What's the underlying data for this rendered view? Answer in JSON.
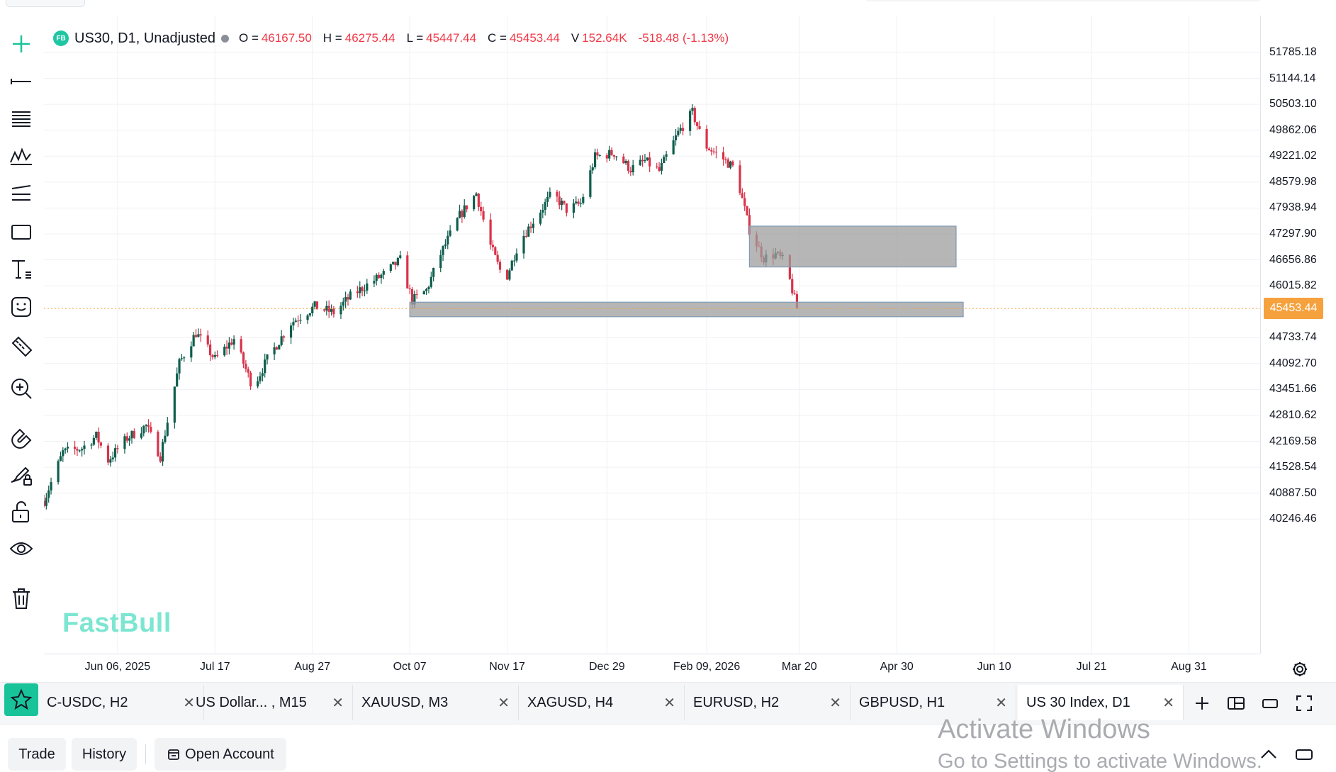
{
  "legend": {
    "logo": "FB",
    "symbol": "US30, D1, Unadjusted",
    "open_key": "O =",
    "open": "46167.50",
    "high_key": "H =",
    "high": "46275.44",
    "low_key": "L =",
    "low": "45447.44",
    "close_key": "C =",
    "close": "45453.44",
    "vol_key": "V",
    "volume": "152.64K",
    "change": "-518.48 (-1.13%)"
  },
  "watermark": "FastBull",
  "price_axis": {
    "labels": [
      "51785.18",
      "51144.14",
      "50503.10",
      "49862.06",
      "49221.02",
      "48579.98",
      "47938.94",
      "47297.90",
      "46656.86",
      "46015.82",
      "44733.74",
      "44092.70",
      "43451.66",
      "42810.62",
      "42169.58",
      "41528.54",
      "40887.50",
      "40246.46"
    ],
    "current": "45453.44"
  },
  "time_axis": {
    "labels": [
      "Jun 06, 2025",
      "Jul 17",
      "Aug 27",
      "Oct 07",
      "Nov 17",
      "Dec 29",
      "Feb 09, 2026",
      "Mar 20",
      "Apr 30",
      "Jun 10",
      "Jul 21",
      "Aug 31"
    ]
  },
  "tabs": [
    {
      "label": "C-USDC, H2",
      "close": "✕"
    },
    {
      "label": "US Dollar... , M15",
      "close": "✕"
    },
    {
      "label": "XAUUSD, M3",
      "close": "✕"
    },
    {
      "label": "XAGUSD, H4",
      "close": "✕"
    },
    {
      "label": "EURUSD, H2",
      "close": "✕"
    },
    {
      "label": "GBPUSD, H1",
      "close": "✕"
    },
    {
      "label": "US 30 Index, D1",
      "close": "✕"
    }
  ],
  "bottom": {
    "trade": "Trade",
    "history": "History",
    "open_account": "Open Account"
  },
  "activate": {
    "title": "Activate Windows",
    "subtitle": "Go to Settings to activate Windows."
  },
  "chart_data": {
    "type": "candlestick",
    "symbol": "US30",
    "timeframe": "D1",
    "ylim": [
      39900,
      52100
    ],
    "x_range": [
      "2025-05-06",
      "2026-09-30"
    ],
    "current_price": 45453.44,
    "colors": {
      "up": "#0e5e4d",
      "down": "#d8334a",
      "zone": "#9e9e9e",
      "current_line": "#f5a13d"
    },
    "zones": [
      {
        "from": "2026-02-27",
        "to": "2026-05-25",
        "top": 47490,
        "bottom": 46480
      },
      {
        "from": "2025-10-07",
        "to": "2026-05-28",
        "top": 45610,
        "bottom": 45250
      }
    ],
    "path_anchors": [
      [
        "2025-05-06",
        40700
      ],
      [
        "2025-05-14",
        41900
      ],
      [
        "2025-05-22",
        42000
      ],
      [
        "2025-05-28",
        42300
      ],
      [
        "2025-06-02",
        41700
      ],
      [
        "2025-06-10",
        42250
      ],
      [
        "2025-06-18",
        42550
      ],
      [
        "2025-06-24",
        41800
      ],
      [
        "2025-07-02",
        44100
      ],
      [
        "2025-07-09",
        44850
      ],
      [
        "2025-07-17",
        44200
      ],
      [
        "2025-07-25",
        44700
      ],
      [
        "2025-08-02",
        43500
      ],
      [
        "2025-08-08",
        44200
      ],
      [
        "2025-08-18",
        45100
      ],
      [
        "2025-08-28",
        45500
      ],
      [
        "2025-09-05",
        45350
      ],
      [
        "2025-09-12",
        45750
      ],
      [
        "2025-09-18",
        46000
      ],
      [
        "2025-09-26",
        46300
      ],
      [
        "2025-10-03",
        46650
      ],
      [
        "2025-10-08",
        45650
      ],
      [
        "2025-10-14",
        45900
      ],
      [
        "2025-10-20",
        46800
      ],
      [
        "2025-10-28",
        47750
      ],
      [
        "2025-11-04",
        48300
      ],
      [
        "2025-11-10",
        47000
      ],
      [
        "2025-11-16",
        46100
      ],
      [
        "2025-11-22",
        47100
      ],
      [
        "2025-11-29",
        47700
      ],
      [
        "2025-12-06",
        48300
      ],
      [
        "2025-12-12",
        47900
      ],
      [
        "2025-12-18",
        48050
      ],
      [
        "2025-12-24",
        49200
      ],
      [
        "2026-01-01",
        49300
      ],
      [
        "2026-01-08",
        48900
      ],
      [
        "2026-01-14",
        49100
      ],
      [
        "2026-01-20",
        48850
      ],
      [
        "2026-01-28",
        49800
      ],
      [
        "2026-02-03",
        50300
      ],
      [
        "2026-02-08",
        49500
      ],
      [
        "2026-02-15",
        49200
      ],
      [
        "2026-02-21",
        48900
      ],
      [
        "2026-02-27",
        47400
      ],
      [
        "2026-03-05",
        46700
      ],
      [
        "2026-03-10",
        46800
      ],
      [
        "2026-03-14",
        46600
      ],
      [
        "2026-03-19",
        45453
      ]
    ]
  }
}
